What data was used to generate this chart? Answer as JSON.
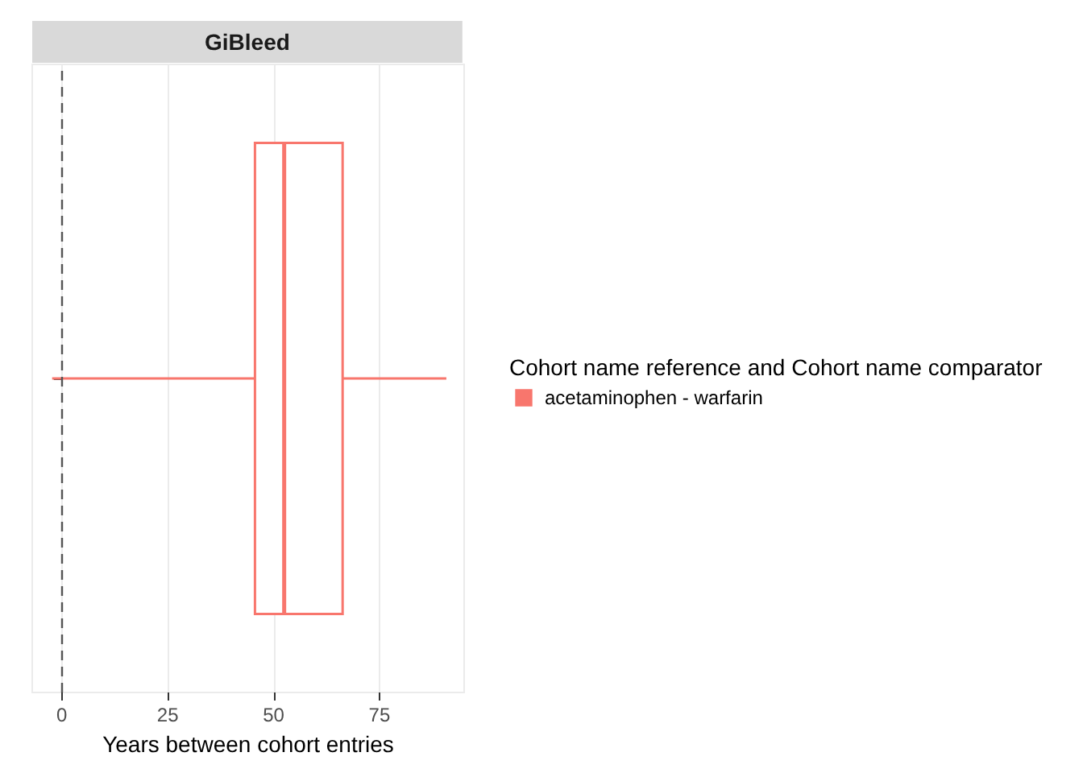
{
  "chart_data": {
    "type": "box",
    "title": "GiBleed",
    "orientation": "horizontal",
    "categories": [
      null
    ],
    "series": [
      {
        "name": "acetaminophen - warfarin",
        "color": "#f8766d",
        "boxes": [
          {
            "low": -2.3,
            "q1": 45.6,
            "median": 52.5,
            "q3": 66.3,
            "high": 90.8
          }
        ]
      }
    ],
    "xlabel": "Years between cohort entries",
    "legend_title": "Cohort name reference and Cohort name comparator",
    "legend": "right",
    "xlim": [
      -7,
      95
    ],
    "xticks": [
      0,
      25,
      50,
      75
    ],
    "grid": "x",
    "ref_lines": [
      {
        "axis": "x",
        "value": 0,
        "color": "#555555",
        "line_style": "dashed"
      }
    ]
  }
}
